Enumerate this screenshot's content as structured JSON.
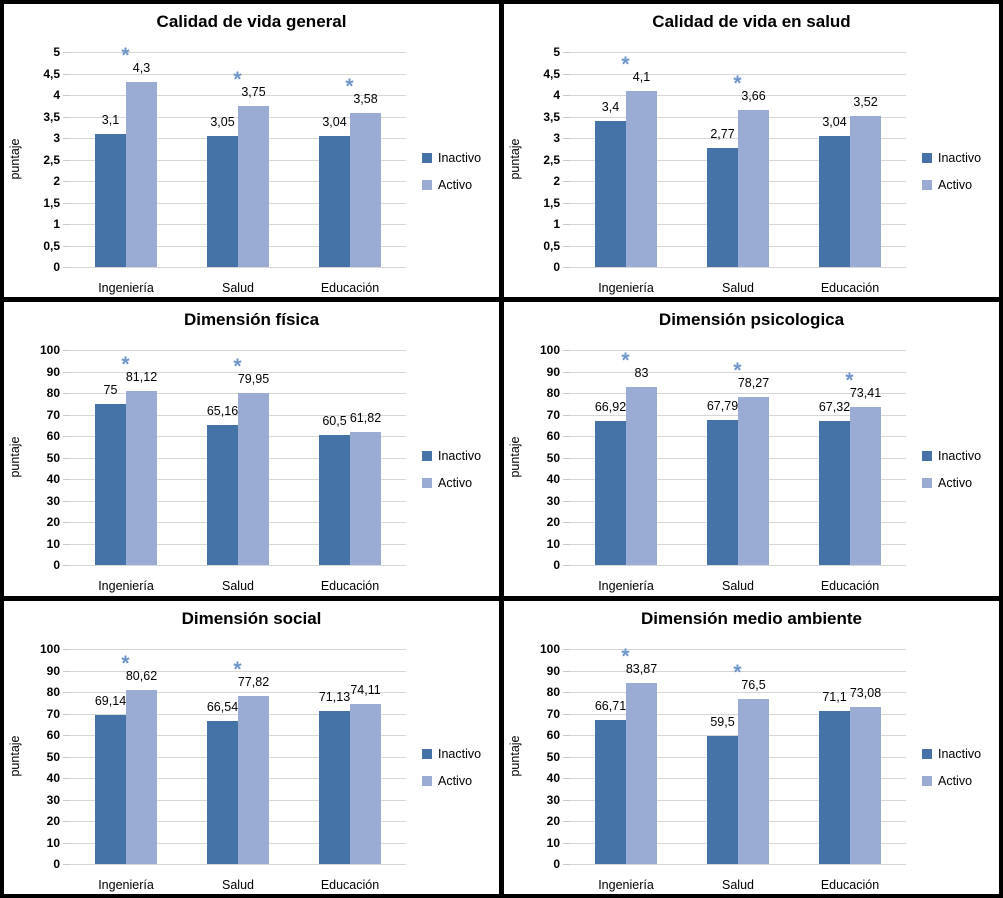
{
  "colors": {
    "inactivo": "#4573A7",
    "activo": "#9AACD4",
    "significance_marker": "#6E96CC",
    "gridline": "#D6D6D6",
    "panel_border": "#000000"
  },
  "significance_marker_glyph": "*",
  "legend": {
    "inactivo_label": "Inactivo",
    "activo_label": "Activo"
  },
  "chart_data": [
    {
      "type": "bar",
      "title": "Calidad de vida general",
      "ylabel": "puntaje",
      "xlabel": "",
      "ylim": [
        0,
        5
      ],
      "ystep": 0.5,
      "ytick_labels": [
        "0",
        "0,5",
        "1",
        "1,5",
        "2",
        "2,5",
        "3",
        "3,5",
        "4",
        "4,5",
        "5"
      ],
      "grid": true,
      "legend_position": "right",
      "categories": [
        "Ingeniería",
        "Salud",
        "Educación"
      ],
      "series": [
        {
          "name": "Inactivo",
          "values": [
            3.1,
            3.05,
            3.04
          ],
          "labels": [
            "3,1",
            "3,05",
            "3,04"
          ]
        },
        {
          "name": "Activo",
          "values": [
            4.3,
            3.75,
            3.58
          ],
          "labels": [
            "4,3",
            "3,75",
            "3,58"
          ]
        }
      ],
      "significant": [
        true,
        true,
        true
      ]
    },
    {
      "type": "bar",
      "title": "Calidad de vida en salud",
      "ylabel": "puntaje",
      "xlabel": "",
      "ylim": [
        0,
        5
      ],
      "ystep": 0.5,
      "ytick_labels": [
        "0",
        "0,5",
        "1",
        "1,5",
        "2",
        "2,5",
        "3",
        "3,5",
        "4",
        "4,5",
        "5"
      ],
      "grid": true,
      "legend_position": "right",
      "categories": [
        "Ingeniería",
        "Salud",
        "Educación"
      ],
      "series": [
        {
          "name": "Inactivo",
          "values": [
            3.4,
            2.77,
            3.04
          ],
          "labels": [
            "3,4",
            "2,77",
            "3,04"
          ]
        },
        {
          "name": "Activo",
          "values": [
            4.1,
            3.66,
            3.52
          ],
          "labels": [
            "4,1",
            "3,66",
            "3,52"
          ]
        }
      ],
      "significant": [
        true,
        true,
        false
      ]
    },
    {
      "type": "bar",
      "title": "Dimensión física",
      "ylabel": "puntaje",
      "xlabel": "",
      "ylim": [
        0,
        100
      ],
      "ystep": 10,
      "ytick_labels": [
        "0",
        "10",
        "20",
        "30",
        "40",
        "50",
        "60",
        "70",
        "80",
        "90",
        "100"
      ],
      "grid": true,
      "legend_position": "right",
      "categories": [
        "Ingeniería",
        "Salud",
        "Educación"
      ],
      "series": [
        {
          "name": "Inactivo",
          "values": [
            75,
            65.16,
            60.5
          ],
          "labels": [
            "75",
            "65,16",
            "60,5"
          ]
        },
        {
          "name": "Activo",
          "values": [
            81.12,
            79.95,
            61.82
          ],
          "labels": [
            "81,12",
            "79,95",
            "61,82"
          ]
        }
      ],
      "significant": [
        true,
        true,
        false
      ]
    },
    {
      "type": "bar",
      "title": "Dimensión psicologica",
      "ylabel": "puntaje",
      "xlabel": "",
      "ylim": [
        0,
        100
      ],
      "ystep": 10,
      "ytick_labels": [
        "0",
        "10",
        "20",
        "30",
        "40",
        "50",
        "60",
        "70",
        "80",
        "90",
        "100"
      ],
      "grid": true,
      "legend_position": "right",
      "categories": [
        "Ingeniería",
        "Salud",
        "Educación"
      ],
      "series": [
        {
          "name": "Inactivo",
          "values": [
            66.92,
            67.79,
            67.32
          ],
          "labels": [
            "66,92",
            "67,79",
            "67,32"
          ]
        },
        {
          "name": "Activo",
          "values": [
            83,
            78.27,
            73.41
          ],
          "labels": [
            "83",
            "78,27",
            "73,41"
          ]
        }
      ],
      "significant": [
        true,
        true,
        true
      ]
    },
    {
      "type": "bar",
      "title": "Dimensión social",
      "ylabel": "puntaje",
      "xlabel": "",
      "ylim": [
        0,
        100
      ],
      "ystep": 10,
      "ytick_labels": [
        "0",
        "10",
        "20",
        "30",
        "40",
        "50",
        "60",
        "70",
        "80",
        "90",
        "100"
      ],
      "grid": true,
      "legend_position": "right",
      "categories": [
        "Ingeniería",
        "Salud",
        "Educación"
      ],
      "series": [
        {
          "name": "Inactivo",
          "values": [
            69.14,
            66.54,
            71.13
          ],
          "labels": [
            "69,14",
            "66,54",
            "71,13"
          ]
        },
        {
          "name": "Activo",
          "values": [
            80.62,
            77.82,
            74.11
          ],
          "labels": [
            "80,62",
            "77,82",
            "74,11"
          ]
        }
      ],
      "significant": [
        true,
        true,
        false
      ]
    },
    {
      "type": "bar",
      "title": "Dimensión medio ambiente",
      "ylabel": "puntaje",
      "xlabel": "",
      "ylim": [
        0,
        100
      ],
      "ystep": 10,
      "ytick_labels": [
        "0",
        "10",
        "20",
        "30",
        "40",
        "50",
        "60",
        "70",
        "80",
        "90",
        "100"
      ],
      "grid": true,
      "legend_position": "right",
      "categories": [
        "Ingeniería",
        "Salud",
        "Educación"
      ],
      "series": [
        {
          "name": "Inactivo",
          "values": [
            66.71,
            59.5,
            71.1
          ],
          "labels": [
            "66,71",
            "59,5",
            "71,1"
          ]
        },
        {
          "name": "Activo",
          "values": [
            83.87,
            76.5,
            73.08
          ],
          "labels": [
            "83,87",
            "76,5",
            "73,08"
          ]
        }
      ],
      "significant": [
        true,
        true,
        false
      ]
    }
  ]
}
